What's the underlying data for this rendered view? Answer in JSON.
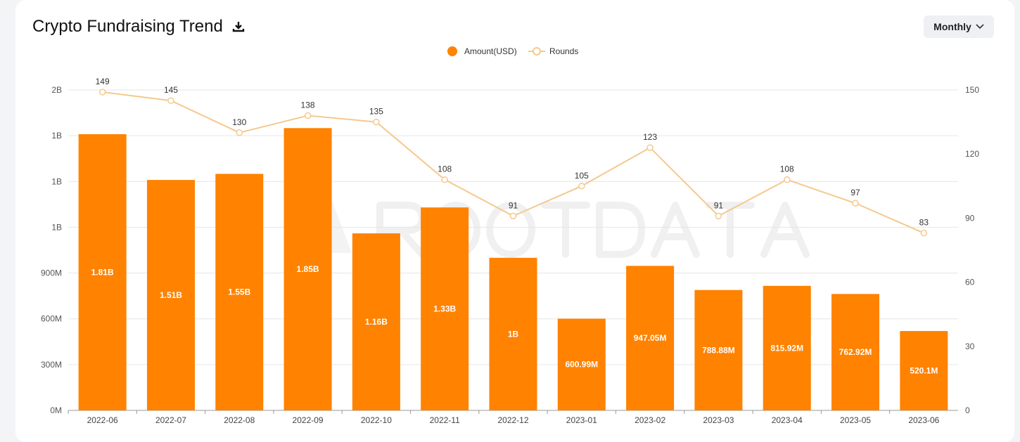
{
  "header": {
    "title": "Crypto Fundraising Trend",
    "download_icon": "download-icon",
    "period_select": "Monthly"
  },
  "watermark": "ROOTDATA",
  "colors": {
    "bar": "#ff8200",
    "line": "#f5c98e",
    "grid": "#e6e6e6"
  },
  "chart_data": {
    "type": "bar+line",
    "categories": [
      "2022-06",
      "2022-07",
      "2022-08",
      "2022-09",
      "2022-10",
      "2022-11",
      "2022-12",
      "2023-01",
      "2023-02",
      "2023-03",
      "2023-04",
      "2023-05",
      "2023-06"
    ],
    "legend": {
      "position": "top-center",
      "items": [
        "Amount(USD)",
        "Rounds"
      ]
    },
    "series": [
      {
        "name": "Amount(USD)",
        "type": "bar",
        "axis": "left",
        "values": [
          1810000000,
          1510000000,
          1550000000,
          1850000000,
          1160000000,
          1330000000,
          1000000000,
          600990000,
          947050000,
          788880000,
          815920000,
          762920000,
          520100000
        ],
        "labels": [
          "1.81B",
          "1.51B",
          "1.55B",
          "1.85B",
          "1.16B",
          "1.33B",
          "1B",
          "600.99M",
          "947.05M",
          "788.88M",
          "815.92M",
          "762.92M",
          "520.1M"
        ]
      },
      {
        "name": "Rounds",
        "type": "line",
        "axis": "right",
        "values": [
          149,
          145,
          130,
          138,
          135,
          108,
          91,
          105,
          123,
          91,
          108,
          97,
          83
        ]
      }
    ],
    "y_left": {
      "range": [
        0,
        2100000000
      ],
      "ticks": [
        "0M",
        "300M",
        "600M",
        "900M",
        "1B",
        "1B",
        "1B",
        "2B"
      ]
    },
    "y_right": {
      "range": [
        0,
        150
      ],
      "ticks": [
        "0",
        "30",
        "60",
        "90",
        "120",
        "150"
      ]
    },
    "grid": true
  }
}
